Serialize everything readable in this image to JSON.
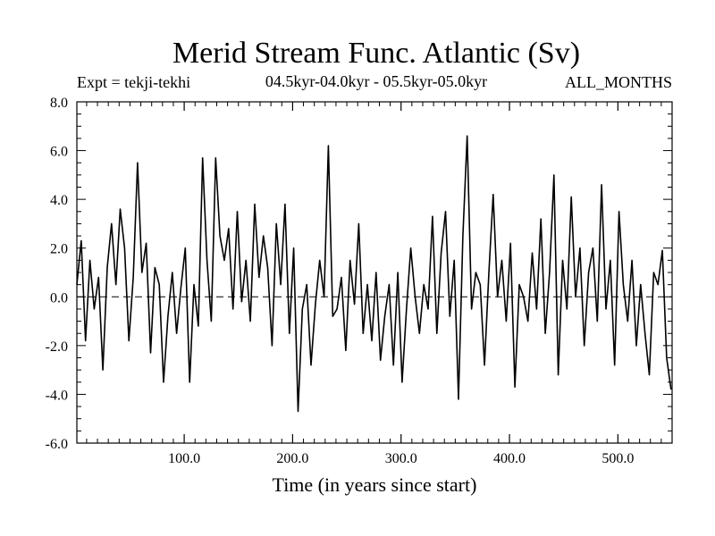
{
  "chart_data": {
    "type": "line",
    "title": "Merid Stream Func. Atlantic (Sv)",
    "subtitle": "04.5kyr-04.0kyr - 05.5kyr-05.0kyr",
    "experiment_label": "Expt = tekji-tekhi",
    "period_label": "ALL_MONTHS",
    "xlabel": "Time (in years since start)",
    "ylabel": "",
    "xlim": [
      1,
      550
    ],
    "ylim": [
      -6,
      8
    ],
    "xticks": [
      100,
      200,
      300,
      400,
      500
    ],
    "xtick_labels": [
      "100.0",
      "200.0",
      "300.0",
      "400.0",
      "500.0"
    ],
    "yticks": [
      -6,
      -4,
      -2,
      0,
      2,
      4,
      6,
      8
    ],
    "ytick_labels": [
      "-6.0",
      "-4.0",
      "-2.0",
      "0.0",
      "2.0",
      "4.0",
      "6.0",
      "8.0"
    ],
    "zero_line": "dashed",
    "grid": false,
    "series": [
      {
        "x": [
          1,
          5,
          9,
          13,
          17,
          21,
          25,
          29,
          33,
          37,
          41,
          45,
          49,
          53,
          57,
          61,
          65,
          69,
          73,
          77,
          81,
          85,
          89,
          93,
          97,
          101,
          105,
          109,
          113,
          117,
          121,
          125,
          129,
          133,
          137,
          141,
          145,
          149,
          153,
          157,
          161,
          165,
          169,
          173,
          177,
          181,
          185,
          189,
          193,
          197,
          201,
          205,
          209,
          213,
          217,
          221,
          225,
          229,
          233,
          237,
          241,
          245,
          249,
          253,
          257,
          261,
          265,
          269,
          273,
          277,
          281,
          285,
          289,
          293,
          297,
          301,
          305,
          309,
          313,
          317,
          321,
          325,
          329,
          333,
          337,
          341,
          345,
          349,
          353,
          357,
          361,
          365,
          369,
          373,
          377,
          381,
          385,
          389,
          393,
          397,
          401,
          405,
          409,
          413,
          417,
          421,
          425,
          429,
          433,
          437,
          441,
          445,
          449,
          453,
          457,
          461,
          465,
          469,
          473,
          477,
          481,
          485,
          489,
          493,
          497,
          501,
          505,
          509,
          513,
          517,
          521,
          525,
          529,
          533,
          537,
          541,
          545,
          549
        ],
        "values": [
          0.5,
          2.3,
          -1.8,
          1.5,
          -0.5,
          0.8,
          -3.0,
          1.2,
          3.0,
          0.5,
          3.6,
          2.0,
          -1.8,
          0.8,
          5.5,
          1.0,
          2.2,
          -2.3,
          1.2,
          0.5,
          -3.5,
          -0.8,
          1.0,
          -1.5,
          0.4,
          2.0,
          -3.5,
          0.5,
          -1.2,
          5.7,
          1.5,
          -1.0,
          5.7,
          2.5,
          1.5,
          2.8,
          -0.5,
          3.5,
          -0.2,
          1.5,
          -1.0,
          3.8,
          0.8,
          2.5,
          1.2,
          -2.0,
          3.0,
          0.5,
          3.8,
          -1.5,
          2.0,
          -4.7,
          -0.5,
          0.5,
          -2.8,
          -0.3,
          1.5,
          0.0,
          6.2,
          -0.8,
          -0.5,
          0.8,
          -2.2,
          1.5,
          -0.3,
          3.0,
          -1.5,
          0.5,
          -1.8,
          1.0,
          -2.6,
          -0.8,
          0.5,
          -2.8,
          1.0,
          -3.5,
          -0.5,
          2.0,
          0.0,
          -1.5,
          0.5,
          -0.5,
          3.3,
          -1.5,
          1.8,
          3.5,
          -0.8,
          1.5,
          -4.2,
          2.5,
          6.6,
          -0.5,
          1.0,
          0.5,
          -2.8,
          1.0,
          4.2,
          0.0,
          1.5,
          -1.0,
          2.2,
          -3.7,
          0.5,
          0.0,
          -1.0,
          1.8,
          -0.5,
          3.2,
          -1.5,
          1.0,
          5.0,
          -3.2,
          1.5,
          -0.5,
          4.1,
          0.0,
          2.0,
          -2.0,
          1.0,
          2.0,
          -1.0,
          4.6,
          -0.5,
          1.5,
          -2.8,
          3.5,
          0.5,
          -1.0,
          1.5,
          -2.0,
          0.5,
          -1.5,
          -3.2,
          1.0,
          0.5,
          1.9,
          -2.5,
          -3.8
        ]
      }
    ]
  }
}
